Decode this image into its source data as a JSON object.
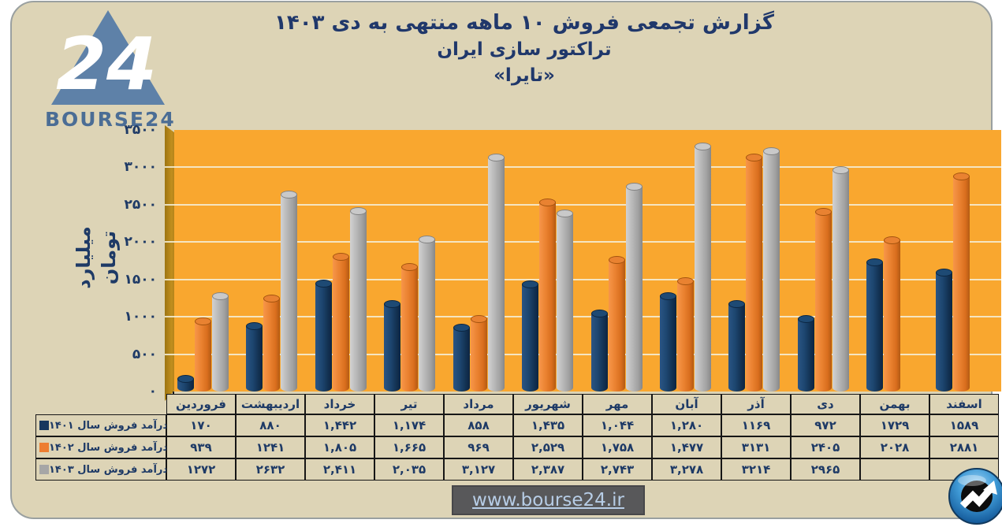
{
  "header": {
    "logo_text": "BOURSE24",
    "logo_numeral": "24",
    "title_line1": "گزارش تجمعی فروش ۱۰ ماهه منتهی به دی ۱۴۰۳",
    "title_line2": "تراکتور سازی ایران",
    "title_line3": "«تایرا»"
  },
  "chart_data": {
    "type": "bar",
    "style": "3d-cylinder",
    "title": "گزارش تجمعی فروش ۱۰ ماهه منتهی به دی ۱۴۰۳ تراکتور سازی ایران «تایرا»",
    "ylabel": "میلیارد تومان",
    "ylim": [
      0,
      3500
    ],
    "ytick_step": 500,
    "grid": true,
    "plot_bg": "#F9A72F",
    "wall_color": "#C08E1E",
    "legend_position": "table-left",
    "yticks": [
      {
        "value": 0,
        "label": "۰"
      },
      {
        "value": 500,
        "label": "۵۰۰"
      },
      {
        "value": 1000,
        "label": "۱۰۰۰"
      },
      {
        "value": 1500,
        "label": "۱۵۰۰"
      },
      {
        "value": 2000,
        "label": "۲۰۰۰"
      },
      {
        "value": 2500,
        "label": "۲۵۰۰"
      },
      {
        "value": 3000,
        "label": "۳۰۰۰"
      },
      {
        "value": 3500,
        "label": "۳۵۰۰"
      }
    ],
    "categories": [
      "فروردین",
      "اردیبهشت",
      "خرداد",
      "تیر",
      "مرداد",
      "شهریور",
      "مهر",
      "آبان",
      "آذر",
      "دی",
      "بهمن",
      "اسفند"
    ],
    "series": [
      {
        "name": "درآمد فروش سال ۱۴۰۱",
        "color": "#17375E",
        "values": [
          170,
          880,
          1442,
          1174,
          858,
          1435,
          1044,
          1280,
          1169,
          972,
          1729,
          1589
        ],
        "labels": [
          "۱۷۰",
          "۸۸۰",
          "۱,۴۴۲",
          "۱,۱۷۴",
          "۸۵۸",
          "۱,۴۳۵",
          "۱,۰۴۴",
          "۱,۲۸۰",
          "۱۱۶۹",
          "۹۷۲",
          "۱۷۲۹",
          "۱۵۸۹"
        ]
      },
      {
        "name": "درآمد فروش سال ۱۴۰۲",
        "color": "#ED7D31",
        "values": [
          939,
          1241,
          1805,
          1665,
          969,
          2529,
          1758,
          1477,
          3131,
          2405,
          2028,
          2881
        ],
        "labels": [
          "۹۳۹",
          "۱۲۴۱",
          "۱,۸۰۵",
          "۱,۶۶۵",
          "۹۶۹",
          "۲,۵۲۹",
          "۱,۷۵۸",
          "۱,۴۷۷",
          "۳۱۳۱",
          "۲۴۰۵",
          "۲۰۲۸",
          "۲۸۸۱"
        ]
      },
      {
        "name": "درآمد فروش سال ۱۴۰۳",
        "color": "#A6A6A6",
        "values": [
          1272,
          2632,
          2411,
          2035,
          3127,
          2387,
          2743,
          3278,
          3214,
          2965,
          null,
          null
        ],
        "labels": [
          "۱۲۷۲",
          "۲۶۳۲",
          "۲,۴۱۱",
          "۲,۰۳۵",
          "۳,۱۲۷",
          "۲,۳۸۷",
          "۲,۷۴۳",
          "۳,۲۷۸",
          "۳۲۱۴",
          "۲۹۶۵",
          "",
          ""
        ]
      }
    ]
  },
  "footer": {
    "url": "www.bourse24.ir"
  },
  "icons": {
    "brand_triangle": "bourse24-triangle-icon",
    "corner": "trend-arrow-circle-icon"
  }
}
